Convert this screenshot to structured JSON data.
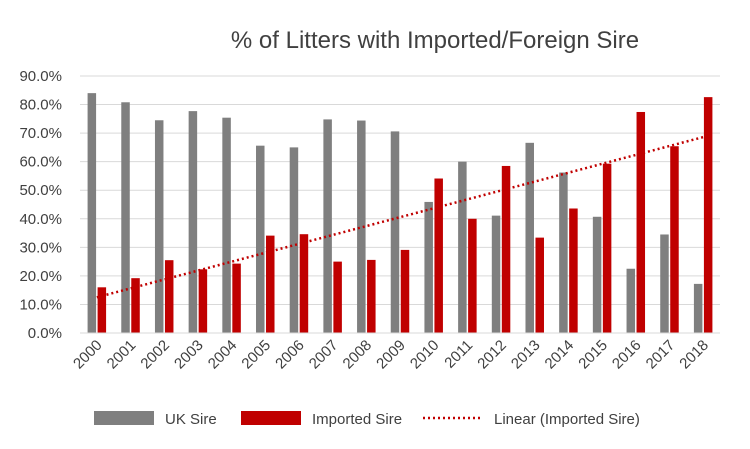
{
  "chart_data": {
    "type": "bar",
    "title": "% of Litters with Imported/Foreign Sire",
    "categories": [
      "2000",
      "2001",
      "2002",
      "2003",
      "2004",
      "2005",
      "2006",
      "2007",
      "2008",
      "2009",
      "2010",
      "2011",
      "2012",
      "2013",
      "2014",
      "2015",
      "2016",
      "2017",
      "2018"
    ],
    "series": [
      {
        "name": "UK Sire",
        "color": "#7f7f7f",
        "values": [
          84.0,
          80.8,
          74.5,
          77.7,
          75.4,
          65.6,
          65.0,
          74.8,
          74.4,
          70.6,
          45.9,
          60.0,
          41.1,
          66.6,
          56.2,
          40.7,
          22.5,
          34.5,
          17.2
        ]
      },
      {
        "name": "Imported Sire",
        "color": "#c00000",
        "values": [
          16.0,
          19.2,
          25.5,
          22.3,
          24.3,
          34.1,
          34.6,
          25.0,
          25.6,
          29.1,
          54.1,
          40.0,
          58.5,
          33.4,
          43.6,
          59.3,
          77.4,
          65.4,
          82.6
        ]
      }
    ],
    "trendline": {
      "name": "Linear (Imported Sire)",
      "color": "#c00000",
      "style": "dotted",
      "start": 12.5,
      "end": 68.6
    },
    "ylim": [
      0,
      90
    ],
    "ytick_step": 10,
    "ytick_labels": [
      "0.0%",
      "10.0%",
      "20.0%",
      "30.0%",
      "40.0%",
      "50.0%",
      "60.0%",
      "70.0%",
      "80.0%",
      "90.0%"
    ],
    "grid": true,
    "xlabel": "",
    "ylabel": "",
    "legend_position": "bottom"
  }
}
